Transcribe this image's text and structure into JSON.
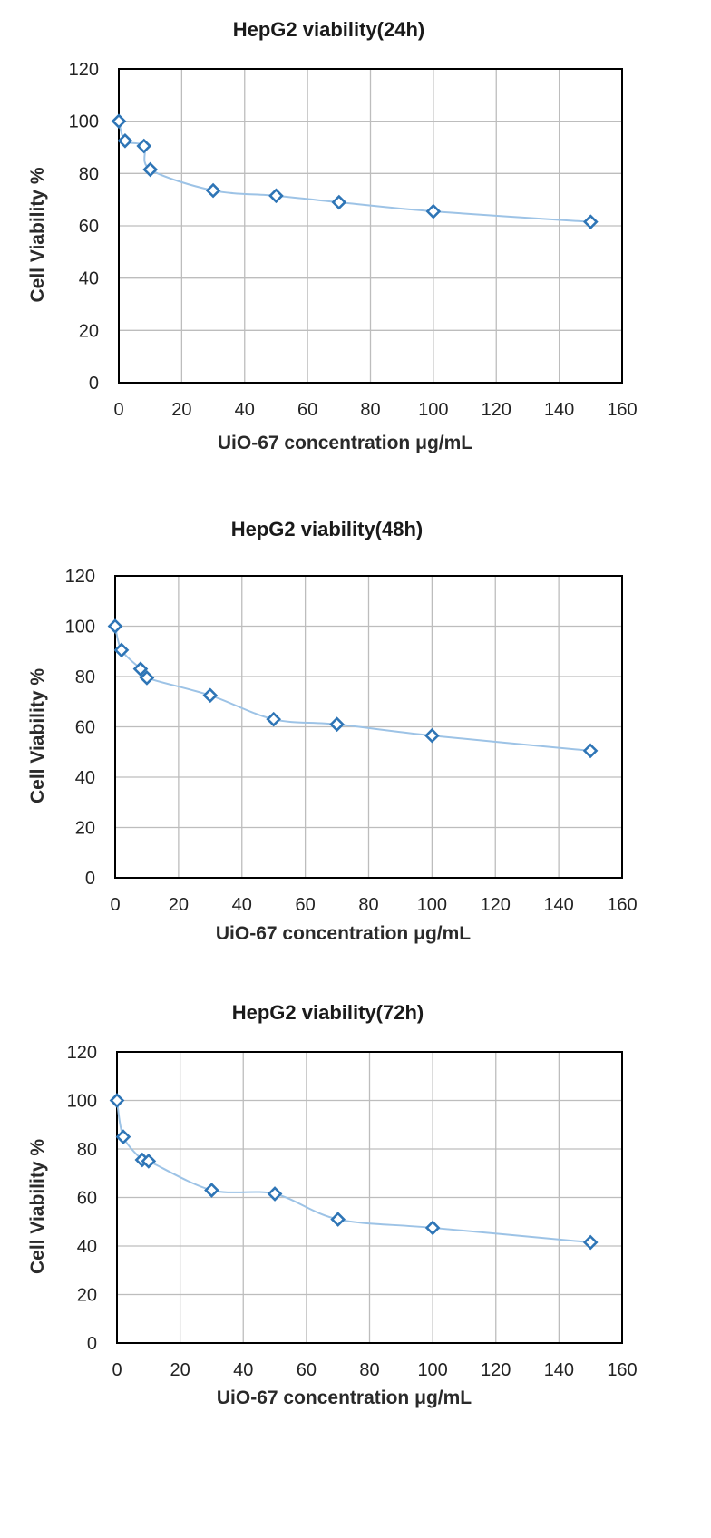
{
  "chart_data": [
    {
      "type": "scatter",
      "title": "HepG2 viability(24h)",
      "xlabel": "UiO-67 concentration μg/mL",
      "ylabel": "Cell Viability %",
      "xlim": [
        0,
        160
      ],
      "ylim": [
        0,
        120
      ],
      "xticks": [
        0,
        20,
        40,
        60,
        80,
        100,
        120,
        140,
        160
      ],
      "yticks": [
        0,
        20,
        40,
        60,
        80,
        100,
        120
      ],
      "grid": true,
      "legend": "none",
      "series": [
        {
          "x": [
            0,
            2,
            8,
            10,
            30,
            50,
            70,
            100,
            150
          ],
          "y": [
            100,
            92.5,
            90.5,
            81.5,
            73.5,
            71.5,
            69,
            65.5,
            61.5
          ]
        }
      ]
    },
    {
      "type": "scatter",
      "title": "HepG2 viability(48h)",
      "xlabel": "UiO-67 concentration μg/mL",
      "ylabel": "Cell Viability %",
      "xlim": [
        0,
        160
      ],
      "ylim": [
        0,
        120
      ],
      "xticks": [
        0,
        20,
        40,
        60,
        80,
        100,
        120,
        140,
        160
      ],
      "yticks": [
        0,
        20,
        40,
        60,
        80,
        100,
        120
      ],
      "grid": true,
      "legend": "none",
      "series": [
        {
          "x": [
            0,
            2,
            8,
            10,
            30,
            50,
            70,
            100,
            150
          ],
          "y": [
            100,
            90.5,
            83,
            79.5,
            72.5,
            63,
            61,
            56.5,
            50.5
          ]
        }
      ]
    },
    {
      "type": "scatter",
      "title": "HepG2 viability(72h)",
      "xlabel": "UiO-67 concentration μg/mL",
      "ylabel": "Cell Viability %",
      "xlim": [
        0,
        160
      ],
      "ylim": [
        0,
        120
      ],
      "xticks": [
        0,
        20,
        40,
        60,
        80,
        100,
        120,
        140,
        160
      ],
      "yticks": [
        0,
        20,
        40,
        60,
        80,
        100,
        120
      ],
      "grid": true,
      "legend": "none",
      "series": [
        {
          "x": [
            0,
            2,
            8,
            10,
            30,
            50,
            70,
            100,
            150
          ],
          "y": [
            100,
            85,
            75.5,
            75,
            63,
            61.5,
            51,
            47.5,
            41.5
          ]
        }
      ]
    }
  ],
  "colors": {
    "line": "#9dc3e6",
    "marker": "#2e75b6"
  }
}
